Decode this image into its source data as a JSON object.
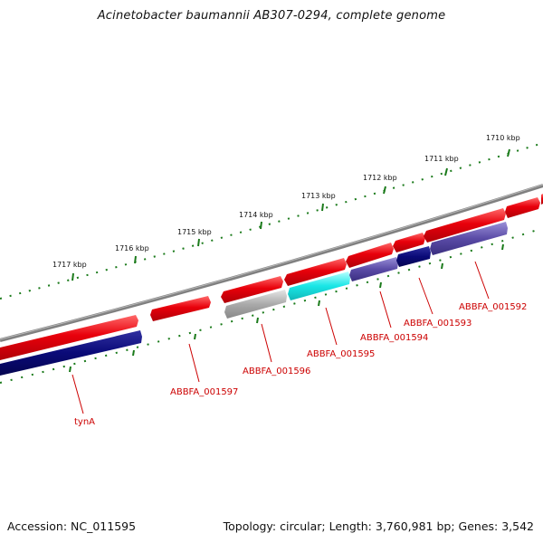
{
  "title": "Acinetobacter baumannii AB307-0294, complete genome",
  "footer": {
    "accession": "Accession: NC_011595",
    "info": "Topology: circular; Length: 3,760,981 bp; Genes: 3,542"
  },
  "scale_labels": [
    "1710 kbp",
    "1711 kbp",
    "1712 kbp",
    "1713 kbp",
    "1714 kbp",
    "1715 kbp",
    "1716 kbp",
    "1717 kbp"
  ],
  "gene_labels": [
    "ABBFA_001592",
    "ABBFA_001593",
    "ABBFA_001594",
    "ABBFA_001595",
    "ABBFA_001596",
    "ABBFA_001597",
    "tynA"
  ],
  "colors": {
    "cds": "#e8000b",
    "cds_highlight": "#ff5a5a",
    "backbone": "#808080",
    "ticks": "#1a7a1a",
    "label": "#cc0000",
    "navy": "#0a0a78",
    "cyan": "#19e6e6",
    "grey": "#a8a8a8",
    "purple": "#5a4ba6"
  }
}
